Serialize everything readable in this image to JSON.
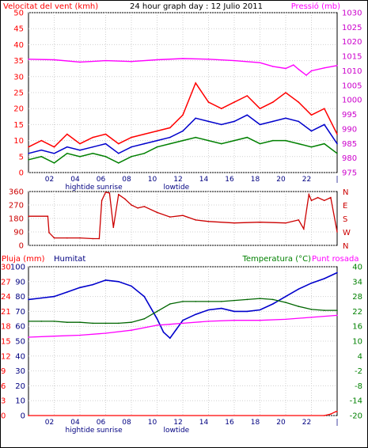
{
  "title": "24 hour graph day : 12 Julio 2011",
  "chart_data": [
    {
      "type": "line",
      "ylabel_left": "Velocitat del vent (kmh)",
      "ylabel_right": "Pressió (mb)",
      "left_ticks": [
        0,
        5,
        10,
        15,
        20,
        25,
        30,
        35,
        40,
        45,
        50
      ],
      "right_ticks": [
        975,
        980,
        985,
        990,
        995,
        1000,
        1005,
        1010,
        1015,
        1020,
        1025,
        1030
      ],
      "ylim_left": [
        0,
        50
      ],
      "ylim_right": [
        975,
        1030
      ],
      "x_ticks": [
        "02",
        "04",
        "06",
        "08",
        "10",
        "12",
        "14",
        "16",
        "18",
        "20",
        "22",
        "|"
      ],
      "x_annotations": [
        "hightide",
        "sunrise",
        "lowtide"
      ],
      "x_range": [
        0,
        24
      ],
      "series": [
        {
          "role": "gust",
          "color": "#ff0000",
          "x": [
            0,
            1,
            2,
            3,
            4,
            5,
            6,
            7,
            8,
            9,
            10,
            11,
            12,
            13,
            14,
            15,
            16,
            17,
            18,
            19,
            20,
            21,
            22,
            23,
            24
          ],
          "values": [
            8,
            10,
            8,
            12,
            9,
            11,
            12,
            9,
            11,
            12,
            13,
            14,
            18,
            28,
            22,
            20,
            22,
            24,
            20,
            22,
            25,
            22,
            18,
            20,
            12
          ]
        },
        {
          "role": "average",
          "color": "#0000cc",
          "x": [
            0,
            1,
            2,
            3,
            4,
            5,
            6,
            7,
            8,
            9,
            10,
            11,
            12,
            13,
            14,
            15,
            16,
            17,
            18,
            19,
            20,
            21,
            22,
            23,
            24
          ],
          "values": [
            6,
            7,
            6,
            8,
            7,
            8,
            9,
            6,
            8,
            9,
            10,
            11,
            13,
            17,
            16,
            15,
            16,
            18,
            15,
            16,
            17,
            16,
            13,
            15,
            9
          ]
        },
        {
          "role": "direction-speed",
          "color": "#008000",
          "x": [
            0,
            1,
            2,
            3,
            4,
            5,
            6,
            7,
            8,
            9,
            10,
            11,
            12,
            13,
            14,
            15,
            16,
            17,
            18,
            19,
            20,
            21,
            22,
            23,
            24
          ],
          "values": [
            4,
            5,
            3,
            6,
            5,
            6,
            5,
            3,
            5,
            6,
            8,
            9,
            10,
            11,
            10,
            9,
            10,
            11,
            9,
            10,
            10,
            9,
            8,
            9,
            6
          ]
        },
        {
          "role": "pressure",
          "color": "#ff00ff",
          "x": [
            0,
            2,
            4,
            6,
            8,
            10,
            12,
            14,
            16,
            18,
            19,
            20,
            20.6,
            21,
            21.6,
            22,
            23,
            24
          ],
          "values": [
            1014,
            1013.8,
            1013,
            1013.5,
            1013.2,
            1013.8,
            1014.2,
            1014,
            1013.5,
            1012.8,
            1011.5,
            1010.8,
            1012,
            1010.5,
            1008.5,
            1010,
            1011,
            1011.8
          ]
        }
      ]
    },
    {
      "type": "line",
      "left_ticks": [
        0,
        90,
        180,
        270,
        360
      ],
      "right_ticks": [
        "N",
        "W",
        "S",
        "E",
        "N"
      ],
      "ylim": [
        0,
        360
      ],
      "x_range": [
        0,
        24
      ],
      "series": [
        {
          "role": "wind-direction",
          "color": "#cc0000",
          "x": [
            0,
            1.5,
            1.6,
            2,
            3,
            4,
            5,
            5.5,
            5.7,
            6,
            6.3,
            6.6,
            7,
            7.5,
            8,
            8.5,
            9,
            10,
            11,
            12,
            13,
            14,
            16,
            18,
            20,
            21,
            21.4,
            21.8,
            22,
            22.5,
            23,
            23.5,
            24
          ],
          "values": [
            195,
            195,
            85,
            50,
            50,
            50,
            45,
            45,
            300,
            355,
            350,
            120,
            340,
            310,
            270,
            250,
            260,
            220,
            190,
            200,
            170,
            160,
            150,
            155,
            150,
            170,
            110,
            340,
            300,
            320,
            300,
            320,
            90
          ]
        }
      ]
    },
    {
      "type": "line",
      "ylabel_left_1": "Pluja (mm)",
      "ylabel_left_2": "Humitat",
      "ylabel_right_1": "Temperatura (°C)",
      "ylabel_right_2": "Punt rosada",
      "rain_ticks": [
        0,
        3,
        6,
        9,
        12,
        15,
        18,
        21,
        24,
        27,
        30
      ],
      "humidity_ticks": [
        0,
        10,
        20,
        30,
        40,
        50,
        60,
        70,
        80,
        90,
        100
      ],
      "temp_ticks": [
        -20,
        -14,
        -8,
        -2,
        4,
        10,
        16,
        22,
        28,
        34,
        40
      ],
      "ylim_rain": [
        0,
        30
      ],
      "ylim_humidity": [
        0,
        100
      ],
      "ylim_temp": [
        -20,
        40
      ],
      "x_ticks": [
        "02",
        "04",
        "06",
        "08",
        "10",
        "12",
        "14",
        "16",
        "18",
        "20",
        "22",
        "|"
      ],
      "x_annotations": [
        "hightide",
        "sunrise",
        "lowtide"
      ],
      "x_range": [
        0,
        24
      ],
      "series": [
        {
          "role": "humidity",
          "color": "#0000cc",
          "x": [
            0,
            1,
            2,
            3,
            4,
            5,
            6,
            7,
            8,
            9,
            10,
            10.5,
            11,
            11.5,
            12,
            13,
            14,
            15,
            16,
            17,
            18,
            19,
            20,
            21,
            22,
            23,
            24
          ],
          "values": [
            78,
            79,
            80,
            83,
            86,
            88,
            91,
            90,
            87,
            80,
            65,
            56,
            52,
            58,
            64,
            68,
            71,
            72,
            70,
            70,
            71,
            75,
            80,
            85,
            89,
            92,
            96
          ]
        },
        {
          "role": "temperature",
          "color": "#006600",
          "x": [
            0,
            1,
            2,
            3,
            4,
            5,
            6,
            7,
            8,
            9,
            10,
            11,
            12,
            13,
            14,
            15,
            16,
            17,
            18,
            19,
            20,
            21,
            22,
            23,
            24
          ],
          "values": [
            18,
            18,
            18,
            17.6,
            17.6,
            17.2,
            17.2,
            17.2,
            17.6,
            19,
            22,
            25,
            26,
            26,
            26,
            26,
            26.4,
            26.8,
            27.2,
            26.8,
            25.6,
            24,
            22.8,
            22.4,
            22.4
          ]
        },
        {
          "role": "dew-point",
          "color": "#ff00ff",
          "x": [
            0,
            2,
            4,
            6,
            8,
            10,
            11,
            12,
            14,
            16,
            18,
            20,
            22,
            24
          ],
          "values": [
            11.6,
            12,
            12.4,
            13.2,
            14.4,
            16.4,
            16.8,
            17.2,
            18,
            18.4,
            18.4,
            18.8,
            19.6,
            20.4
          ]
        },
        {
          "role": "rain",
          "color": "#ff0000",
          "x": [
            0,
            23,
            23.5,
            23.9,
            24
          ],
          "values": [
            0,
            0,
            0.3,
            0.8,
            0.8
          ]
        }
      ]
    }
  ]
}
